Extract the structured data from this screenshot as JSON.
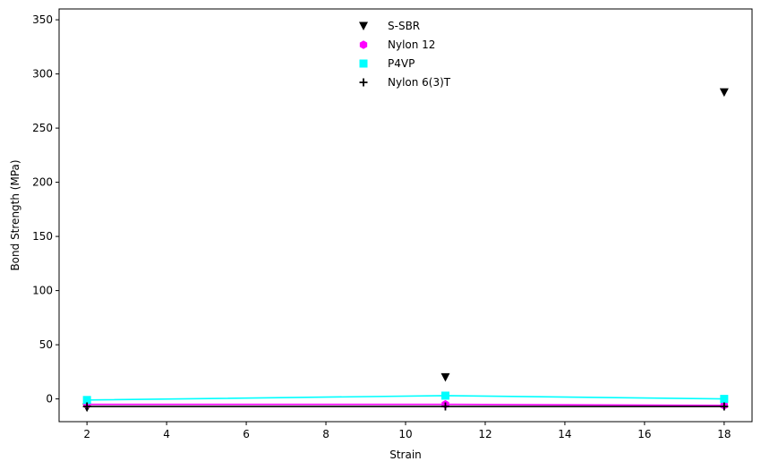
{
  "chart_data": {
    "type": "line",
    "xlabel": "Strain",
    "ylabel": "Bond Strength (MPa)",
    "xlim": [
      1.3,
      18.7
    ],
    "ylim": [
      -21,
      360
    ],
    "xticks": [
      2,
      4,
      6,
      8,
      10,
      12,
      14,
      16,
      18
    ],
    "yticks": [
      0,
      50,
      100,
      150,
      200,
      250,
      300,
      350
    ],
    "x": [
      2,
      11,
      18
    ],
    "grid": false,
    "legend_position": "upper-center",
    "series": [
      {
        "name": "S-SBR",
        "values": [
          -8,
          20,
          283
        ],
        "color": "#000000",
        "marker": "triangle-down",
        "line": false
      },
      {
        "name": "Nylon 12",
        "values": [
          -5,
          -5,
          -6
        ],
        "color": "#ff00ff",
        "marker": "hexagon",
        "line": true
      },
      {
        "name": "P4VP",
        "values": [
          -1,
          3,
          0
        ],
        "color": "#00ffff",
        "marker": "square",
        "line": true
      },
      {
        "name": "Nylon 6(3)T",
        "values": [
          -7,
          -7,
          -7
        ],
        "color": "#000000",
        "marker": "plus",
        "line": true
      }
    ]
  }
}
